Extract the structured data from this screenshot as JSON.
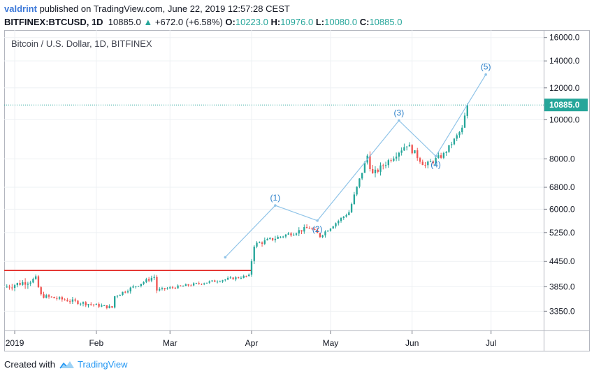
{
  "header": {
    "author": "valdrint",
    "published_text": " published on TradingView.com, June 22, 2019 12:57:28 CEST",
    "symbol": "BITFINEX:BTCUSD, 1D",
    "last": "10885.0",
    "change": "+672.0 (+6.58%)",
    "o_label": "O:",
    "o_value": "10223.0",
    "h_label": "H:",
    "h_value": "10976.0",
    "l_label": "L:",
    "l_value": "10080.0",
    "c_label": "C:",
    "c_value": "10885.0"
  },
  "chart_data": {
    "type": "candlestick",
    "title": "Bitcoin / U.S. Dollar, 1D, BITFINEX",
    "y_scale": "log",
    "ylim": [
      3000,
      16700
    ],
    "y_ticks": [
      "16000.0",
      "14000.0",
      "12000.0",
      "10000.0",
      "8000.0",
      "6800.0",
      "6000.0",
      "5250.0",
      "4450.0",
      "3850.0",
      "3350.0"
    ],
    "x_range": [
      "2018-12-28",
      "2019-07-21"
    ],
    "x_ticks": [
      {
        "date": "2019-01-01",
        "label": "2019"
      },
      {
        "date": "2019-02-01",
        "label": "Feb"
      },
      {
        "date": "2019-03-01",
        "label": "Mar"
      },
      {
        "date": "2019-04-01",
        "label": "Apr"
      },
      {
        "date": "2019-05-01",
        "label": "May"
      },
      {
        "date": "2019-06-01",
        "label": "Jun"
      },
      {
        "date": "2019-07-01",
        "label": "Jul"
      }
    ],
    "last_price": 10885.0,
    "last_price_label": "10885.0",
    "colors": {
      "up": "#26a69a",
      "down": "#ef5350",
      "wave": "#90c4e8",
      "wave_label": "#2a7fc9",
      "resistance": "#e53935",
      "last_price": "#26a69a"
    },
    "resistance_line": {
      "value": 4230,
      "from": "2018-12-28",
      "to": "2019-04-01"
    },
    "elliott_wave": [
      {
        "date": "2019-03-22",
        "value": 4560,
        "label": ""
      },
      {
        "date": "2019-04-10",
        "value": 6130,
        "label": "(1)"
      },
      {
        "date": "2019-04-26",
        "value": 5620,
        "label": "(2)"
      },
      {
        "date": "2019-05-27",
        "value": 9960,
        "label": "(3)"
      },
      {
        "date": "2019-06-10",
        "value": 8120,
        "label": "(4)"
      },
      {
        "date": "2019-06-29",
        "value": 12950,
        "label": "(5)"
      }
    ],
    "candle_segments": [
      {
        "start": "2018-12-28",
        "end": "2019-01-09",
        "from": 3840,
        "to": 4020,
        "vol": 0.035
      },
      {
        "start": "2019-01-09",
        "end": "2019-01-11",
        "from": 4020,
        "to": 3660,
        "vol": 0.03
      },
      {
        "start": "2019-01-11",
        "end": "2019-01-28",
        "from": 3660,
        "to": 3500,
        "vol": 0.022
      },
      {
        "start": "2019-01-28",
        "end": "2019-02-07",
        "from": 3500,
        "to": 3420,
        "vol": 0.018
      },
      {
        "start": "2019-02-07",
        "end": "2019-02-08",
        "from": 3420,
        "to": 3650,
        "vol": 0.02
      },
      {
        "start": "2019-02-08",
        "end": "2019-02-23",
        "from": 3650,
        "to": 4080,
        "vol": 0.02
      },
      {
        "start": "2019-02-23",
        "end": "2019-02-24",
        "from": 4080,
        "to": 3780,
        "vol": 0.03
      },
      {
        "start": "2019-02-24",
        "end": "2019-03-31",
        "from": 3780,
        "to": 4100,
        "vol": 0.015
      },
      {
        "start": "2019-03-31",
        "end": "2019-04-02",
        "from": 4100,
        "to": 4900,
        "vol": 0.03
      },
      {
        "start": "2019-04-02",
        "end": "2019-04-23",
        "from": 4900,
        "to": 5400,
        "vol": 0.025
      },
      {
        "start": "2019-04-23",
        "end": "2019-04-27",
        "from": 5400,
        "to": 5150,
        "vol": 0.025
      },
      {
        "start": "2019-04-27",
        "end": "2019-05-08",
        "from": 5150,
        "to": 5900,
        "vol": 0.02
      },
      {
        "start": "2019-05-08",
        "end": "2019-05-15",
        "from": 5900,
        "to": 8150,
        "vol": 0.03
      },
      {
        "start": "2019-05-15",
        "end": "2019-05-17",
        "from": 8150,
        "to": 7300,
        "vol": 0.045
      },
      {
        "start": "2019-05-17",
        "end": "2019-05-30",
        "from": 7300,
        "to": 8700,
        "vol": 0.035
      },
      {
        "start": "2019-05-30",
        "end": "2019-06-06",
        "from": 8700,
        "to": 7700,
        "vol": 0.035
      },
      {
        "start": "2019-06-06",
        "end": "2019-06-13",
        "from": 7700,
        "to": 8200,
        "vol": 0.03
      },
      {
        "start": "2019-06-13",
        "end": "2019-06-20",
        "from": 8200,
        "to": 9500,
        "vol": 0.025
      },
      {
        "start": "2019-06-20",
        "end": "2019-06-22",
        "from": 9500,
        "to": 10885,
        "vol": 0.04
      }
    ]
  },
  "footer": {
    "created_with": "Created with",
    "brand": "TradingView"
  }
}
